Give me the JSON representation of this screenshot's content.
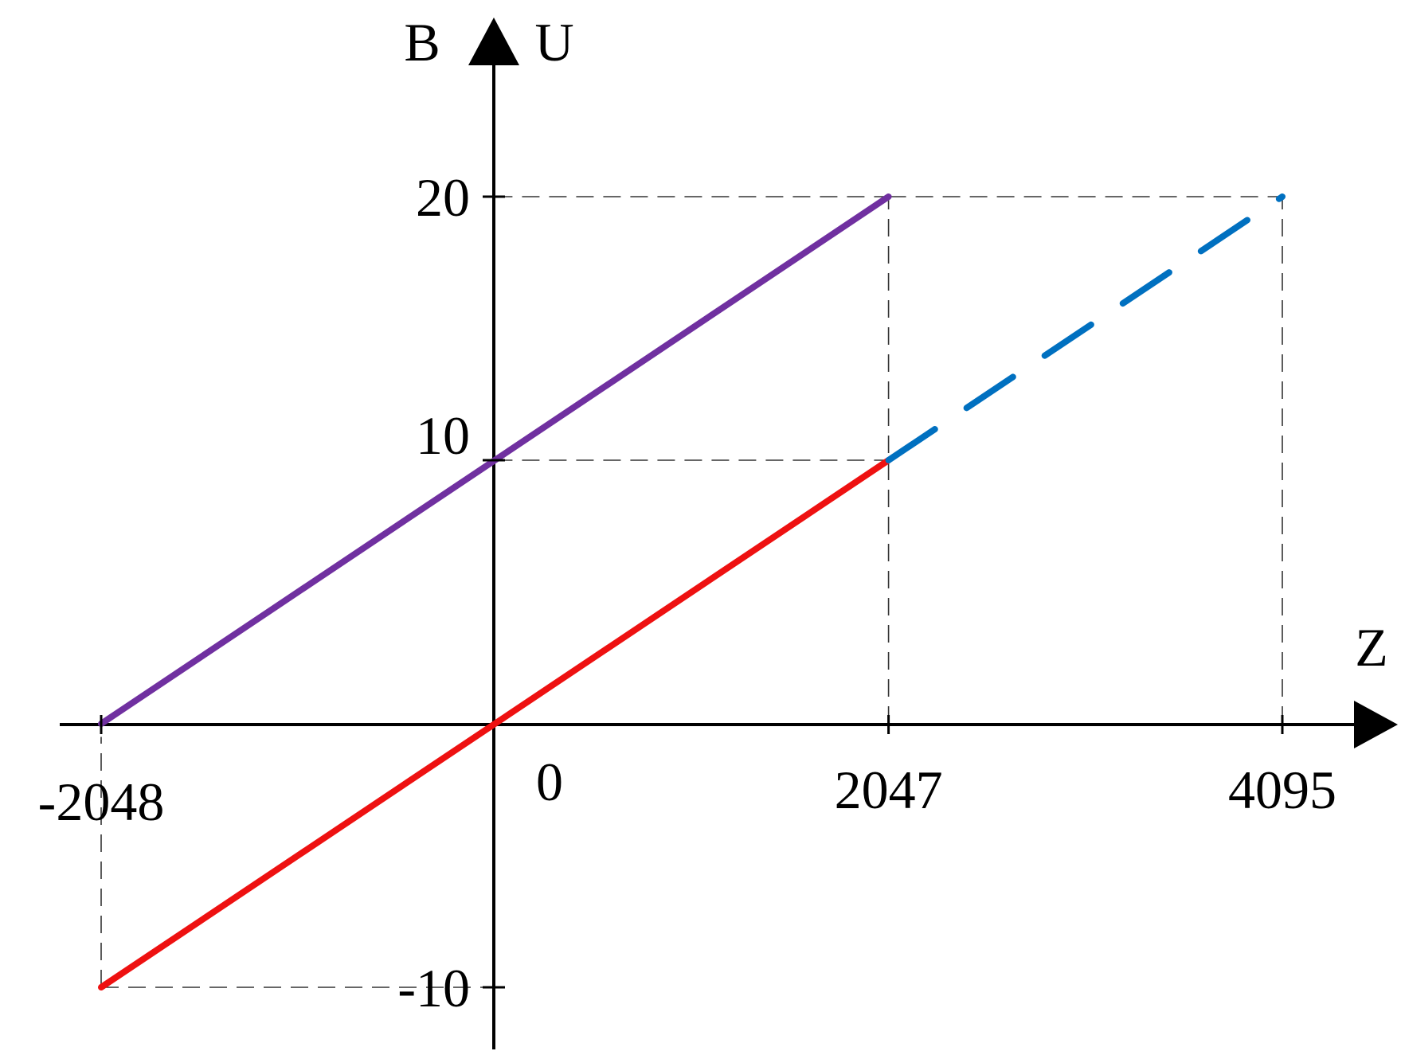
{
  "chart_data": {
    "type": "line",
    "xlabel": "Z",
    "ylabel_left": "B",
    "ylabel_right": "U",
    "xlim": [
      -2048,
      4095
    ],
    "ylim": [
      -10,
      20
    ],
    "x_ticks": [
      "-2048",
      "0",
      "2047",
      "4095"
    ],
    "y_ticks": [
      "20",
      "10",
      "-10"
    ],
    "grid": false,
    "series": [
      {
        "style": "solid",
        "color": "#7030A0",
        "x": [
          -2048,
          2047
        ],
        "y": [
          0,
          20
        ]
      },
      {
        "style": "solid",
        "color": "#EE1111",
        "x": [
          -2048,
          2047
        ],
        "y": [
          -10,
          10
        ]
      },
      {
        "style": "dashed",
        "color": "#0070C0",
        "x": [
          2047,
          4095
        ],
        "y": [
          10,
          20
        ]
      }
    ],
    "guides": [
      {
        "x": [
          0,
          2047
        ],
        "y": [
          20,
          20
        ]
      },
      {
        "x": [
          2047,
          4095
        ],
        "y": [
          20,
          20
        ]
      },
      {
        "x": [
          0,
          2047
        ],
        "y": [
          10,
          10
        ]
      },
      {
        "x": [
          2047,
          2047
        ],
        "y": [
          0,
          20
        ]
      },
      {
        "x": [
          4095,
          4095
        ],
        "y": [
          0,
          20
        ]
      },
      {
        "x": [
          -2048,
          -2048
        ],
        "y": [
          -10,
          -0.5
        ]
      },
      {
        "x": [
          -2048,
          0
        ],
        "y": [
          -10,
          -10
        ]
      }
    ]
  }
}
